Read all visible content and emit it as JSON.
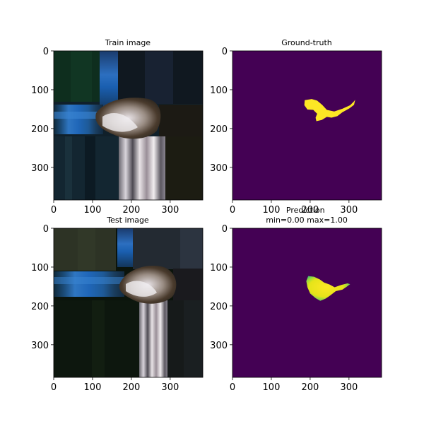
{
  "chart_data": [
    {
      "type": "image",
      "title": "Train image",
      "xlim": [
        0,
        384
      ],
      "ylim": [
        384,
        0
      ],
      "xticks": [
        0,
        100,
        200,
        300
      ],
      "yticks": [
        0,
        100,
        200,
        300
      ]
    },
    {
      "type": "heatmap",
      "title": "Ground-truth",
      "colormap": "viridis",
      "xlim": [
        0,
        384
      ],
      "ylim": [
        384,
        0
      ],
      "xticks": [
        0,
        100,
        200,
        300
      ],
      "yticks": [
        0,
        100,
        200,
        300
      ],
      "mask_outline": [
        [
          186,
          127
        ],
        [
          204,
          124
        ],
        [
          218,
          128
        ],
        [
          231,
          139
        ],
        [
          243,
          152
        ],
        [
          262,
          156
        ],
        [
          283,
          149
        ],
        [
          303,
          140
        ],
        [
          313,
          130
        ],
        [
          316,
          126
        ],
        [
          313,
          139
        ],
        [
          301,
          148
        ],
        [
          283,
          158
        ],
        [
          270,
          168
        ],
        [
          255,
          172
        ],
        [
          243,
          170
        ],
        [
          230,
          178
        ],
        [
          216,
          181
        ],
        [
          214,
          172
        ],
        [
          218,
          162
        ],
        [
          208,
          152
        ],
        [
          193,
          151
        ],
        [
          185,
          140
        ]
      ]
    },
    {
      "type": "image",
      "title": "Test image",
      "xlim": [
        0,
        384
      ],
      "ylim": [
        384,
        0
      ],
      "xticks": [
        0,
        100,
        200,
        300
      ],
      "yticks": [
        0,
        100,
        200,
        300
      ]
    },
    {
      "type": "heatmap",
      "title": "Prediction\nmin=0.00 max=1.00",
      "colormap": "viridis",
      "value_range": [
        0.0,
        1.0
      ],
      "xlim": [
        0,
        384
      ],
      "ylim": [
        384,
        0
      ],
      "xticks": [
        0,
        100,
        200,
        300
      ],
      "yticks": [
        0,
        100,
        200,
        300
      ],
      "mask_outline": [
        [
          195,
          123
        ],
        [
          210,
          125
        ],
        [
          225,
          132
        ],
        [
          236,
          140
        ],
        [
          250,
          145
        ],
        [
          263,
          152
        ],
        [
          280,
          146
        ],
        [
          296,
          142
        ],
        [
          303,
          144
        ],
        [
          295,
          150
        ],
        [
          283,
          158
        ],
        [
          266,
          162
        ],
        [
          252,
          173
        ],
        [
          240,
          181
        ],
        [
          226,
          187
        ],
        [
          214,
          180
        ],
        [
          200,
          168
        ],
        [
          193,
          152
        ],
        [
          190,
          136
        ]
      ]
    }
  ],
  "colors": {
    "viridis_low": "#440154",
    "viridis_high": "#fde725",
    "viridis_mid_high": "#5ec962"
  }
}
